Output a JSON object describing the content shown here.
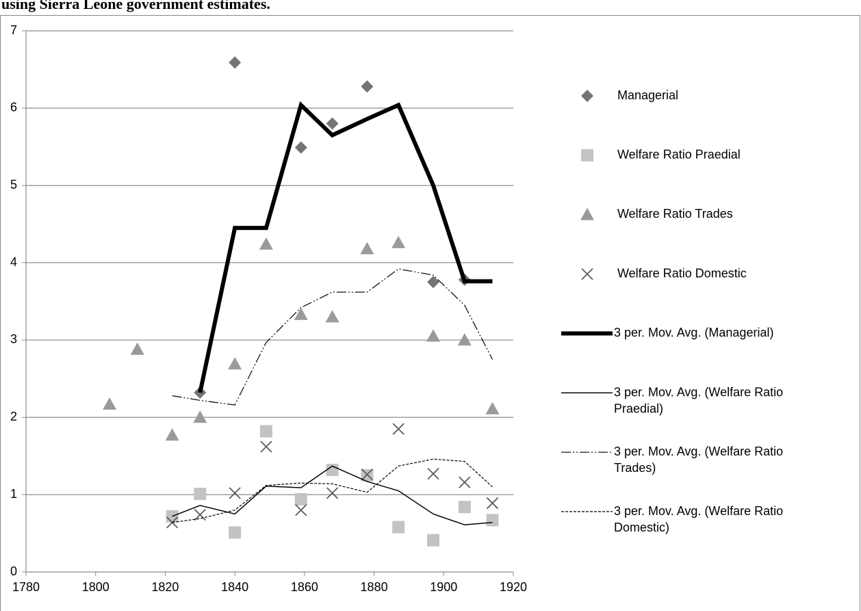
{
  "chart_data": {
    "type": "scatter",
    "title": "using Sierra Leone government estimates.",
    "x": [
      1804,
      1812,
      1822,
      1830,
      1840,
      1849,
      1859,
      1868,
      1878,
      1887,
      1897,
      1906,
      1914
    ],
    "xlim": [
      1780,
      1920
    ],
    "xticks": [
      1780,
      1800,
      1820,
      1840,
      1860,
      1880,
      1900,
      1920
    ],
    "ylim": [
      0,
      7
    ],
    "yticks": [
      0,
      1,
      2,
      3,
      4,
      5,
      6,
      7
    ],
    "grid": true,
    "legend": "right",
    "series": [
      {
        "name": "Managerial",
        "type": "scatter",
        "marker": "diamond",
        "color": "#747474",
        "values": [
          null,
          null,
          null,
          2.32,
          6.59,
          null,
          5.49,
          5.8,
          6.28,
          null,
          3.75,
          3.78,
          null
        ]
      },
      {
        "name": "Welfare Ratio Praedial",
        "type": "scatter",
        "marker": "square",
        "color": "#c3c3c3",
        "values": [
          null,
          null,
          0.72,
          1.01,
          0.51,
          1.82,
          0.94,
          1.32,
          1.25,
          0.58,
          0.41,
          0.84,
          0.67
        ]
      },
      {
        "name": "Welfare Ratio Trades",
        "type": "scatter",
        "marker": "triangle",
        "color": "#9a9a9a",
        "values": [
          2.17,
          2.88,
          1.77,
          2.0,
          2.69,
          4.24,
          3.33,
          3.3,
          4.18,
          4.26,
          3.05,
          3.0,
          2.11
        ]
      },
      {
        "name": "Welfare Ratio Domestic",
        "type": "scatter",
        "marker": "x",
        "color": "#5a5a5a",
        "values": [
          null,
          null,
          0.64,
          0.74,
          1.02,
          1.62,
          0.8,
          1.02,
          1.26,
          1.85,
          1.27,
          1.16,
          0.89
        ]
      },
      {
        "name": "3 per. Mov. Avg. (Managerial)",
        "type": "line",
        "color": "#000000",
        "line_width": 6,
        "dash": "solid",
        "values": [
          null,
          null,
          null,
          2.32,
          4.45,
          4.45,
          6.04,
          5.65,
          5.86,
          6.04,
          5.0,
          3.76,
          3.76
        ]
      },
      {
        "name": "3 per. Mov. Avg. (Welfare Ratio Praedial)",
        "type": "line",
        "color": "#000000",
        "line_width": 1.5,
        "dash": "solid",
        "values": [
          null,
          null,
          0.72,
          0.86,
          0.75,
          1.11,
          1.09,
          1.37,
          1.17,
          1.05,
          0.75,
          0.61,
          0.64
        ]
      },
      {
        "name": "3 per. Mov. Avg. (Welfare Ratio Trades)",
        "type": "line",
        "color": "#000000",
        "line_width": 1.2,
        "dash": "dashdotdot",
        "values": [
          null,
          null,
          2.28,
          2.22,
          2.16,
          2.97,
          3.42,
          3.62,
          3.62,
          3.92,
          3.84,
          3.45,
          2.75
        ]
      },
      {
        "name": "3 per. Mov. Avg. (Welfare Ratio Domestic)",
        "type": "line",
        "color": "#000000",
        "line_width": 1.2,
        "dash": "dashed",
        "values": [
          null,
          null,
          0.64,
          0.69,
          0.8,
          1.12,
          1.15,
          1.14,
          1.03,
          1.37,
          1.46,
          1.43,
          1.1
        ]
      }
    ]
  }
}
